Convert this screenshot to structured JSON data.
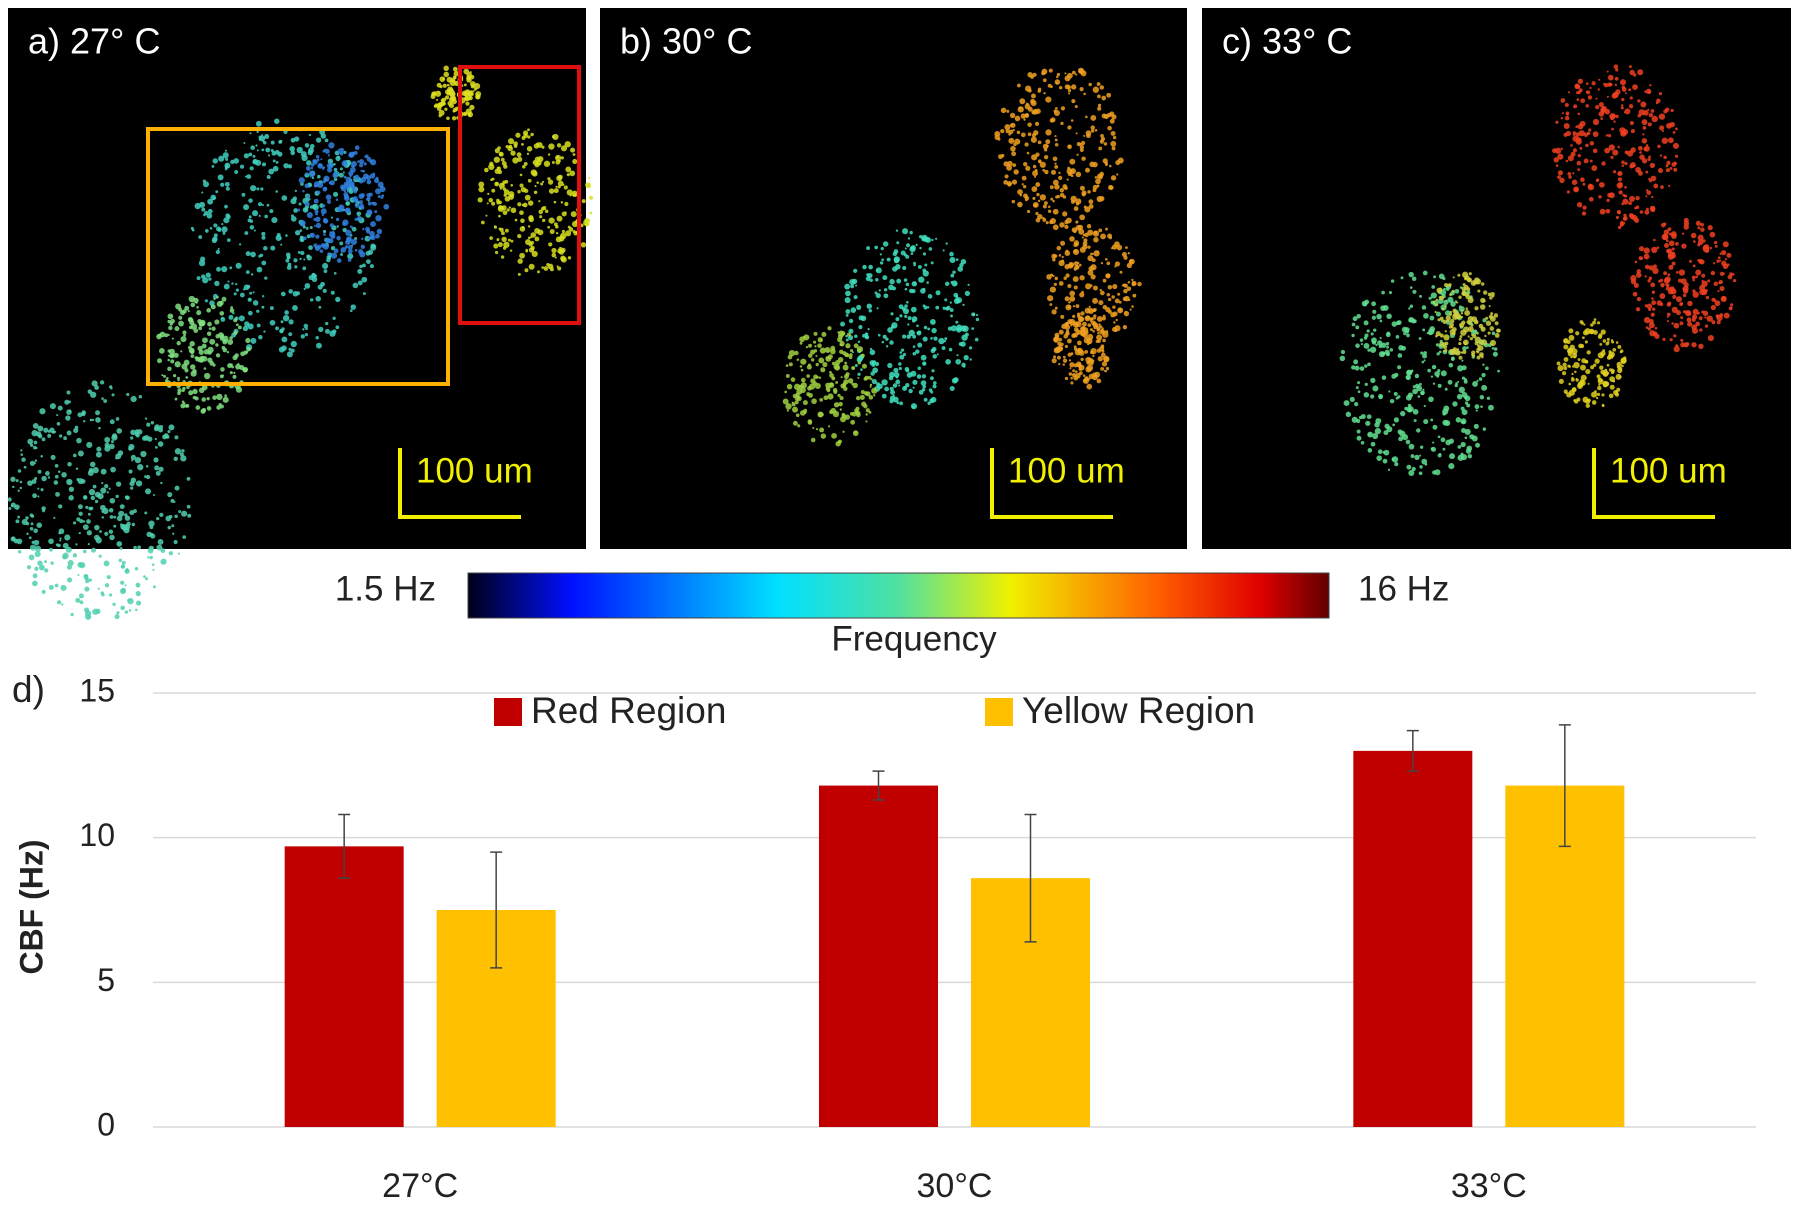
{
  "panels": [
    {
      "label": "a) 27° C",
      "scale_bar": "100 um"
    },
    {
      "label": "b) 30° C",
      "scale_bar": "100 um"
    },
    {
      "label": "c) 33° C",
      "scale_bar": "100 um"
    }
  ],
  "colorbar": {
    "min_label": "1.5 Hz",
    "max_label": "16 Hz",
    "title": "Frequency"
  },
  "chart_data": {
    "type": "bar",
    "panel_label": "d)",
    "ylabel": "CBF (Hz)",
    "categories": [
      "27°C",
      "30°C",
      "33°C"
    ],
    "series": [
      {
        "name": "Red Region",
        "color": "#c00000",
        "values": [
          9.7,
          11.8,
          13.0
        ],
        "errors": [
          1.1,
          0.5,
          0.7
        ]
      },
      {
        "name": "Yellow Region",
        "color": "#ffc000",
        "values": [
          7.5,
          8.6,
          11.8
        ],
        "errors": [
          2.0,
          2.2,
          2.1
        ]
      }
    ],
    "ylim": [
      0,
      15
    ],
    "yticks": [
      0,
      5,
      10,
      15
    ],
    "grid": true
  }
}
